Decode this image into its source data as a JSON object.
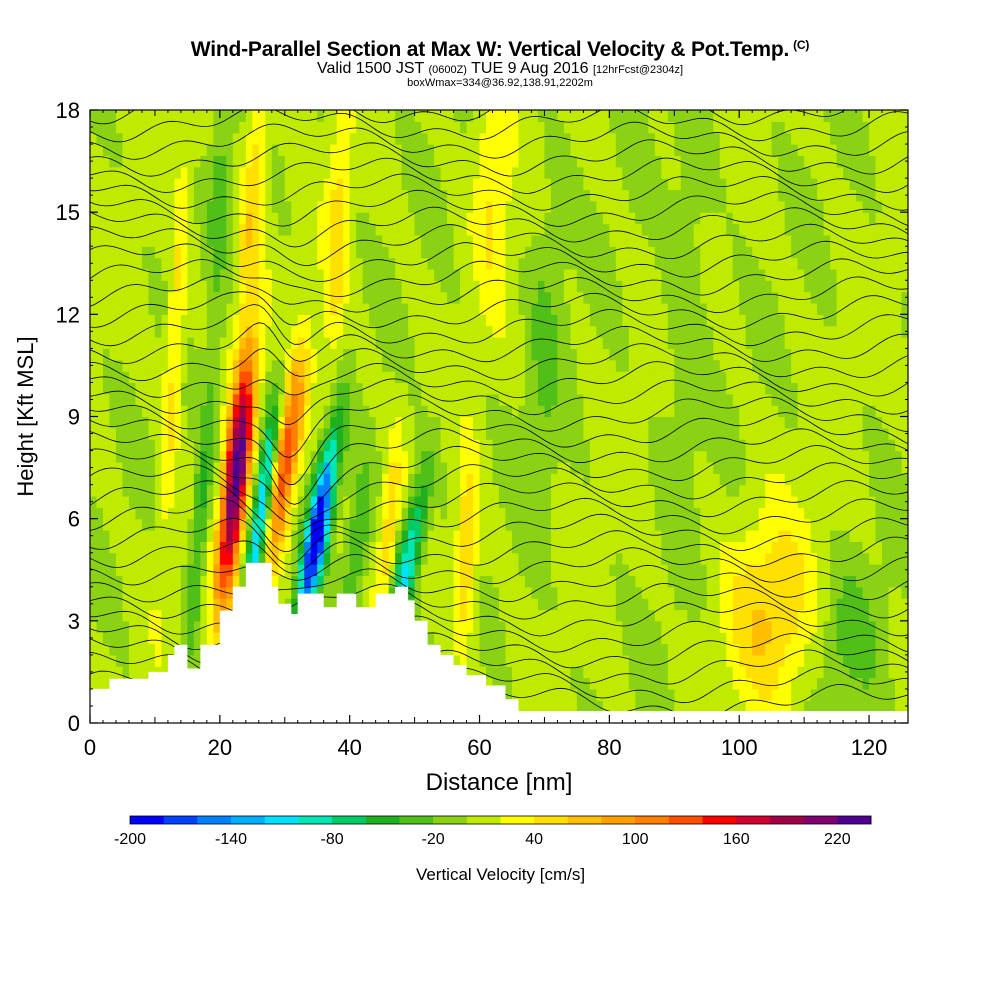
{
  "header": {
    "title": "Wind-Parallel Section at Max W: Vertical Velocity & Pot.Temp.",
    "copyright": "(C)",
    "valid_prefix": "Valid 1500 JST",
    "valid_utc": "(0600Z)",
    "valid_date": "TUE 9 Aug 2016",
    "forecast": "[12hrFcst@2304z]",
    "boxinfo": "boxWmax=334@36.92,138.91,2202m"
  },
  "chart_data": {
    "type": "heatmap",
    "xlabel": "Distance [nm]",
    "ylabel": "Height [Kft MSL]",
    "xlim": [
      0,
      126
    ],
    "ylim": [
      0,
      18
    ],
    "x_ticks": [
      0,
      20,
      40,
      60,
      80,
      100,
      120
    ],
    "y_ticks": [
      0,
      3,
      6,
      9,
      12,
      15,
      18
    ],
    "colorbar": {
      "label": "Vertical Velocity [cm/s]",
      "min": -200,
      "step": 20,
      "tick_labels": [
        "-200",
        "-140",
        "-80",
        "-20",
        "40",
        "100",
        "160",
        "220"
      ],
      "colors": [
        "#0000ff",
        "#0040ff",
        "#0080ff",
        "#00b0ff",
        "#00e0ff",
        "#00e6b4",
        "#00cc66",
        "#1fb01f",
        "#50c018",
        "#8cd214",
        "#beeb00",
        "#ffff00",
        "#ffe000",
        "#ffbf00",
        "#ff9f00",
        "#ff7f00",
        "#ff5000",
        "#ff0000",
        "#d00030",
        "#a00048",
        "#800070",
        "#500090"
      ]
    },
    "terrain_kft": [
      [
        0,
        1.0
      ],
      [
        3,
        1.0
      ],
      [
        3,
        1.3
      ],
      [
        9,
        1.3
      ],
      [
        9,
        1.5
      ],
      [
        12,
        1.5
      ],
      [
        12,
        2.0
      ],
      [
        13,
        2.0
      ],
      [
        13,
        2.3
      ],
      [
        15,
        2.3
      ],
      [
        15,
        1.6
      ],
      [
        17,
        1.6
      ],
      [
        17,
        2.3
      ],
      [
        20,
        2.3
      ],
      [
        20,
        3.3
      ],
      [
        22,
        3.3
      ],
      [
        22,
        4.0
      ],
      [
        24,
        4.0
      ],
      [
        24,
        4.7
      ],
      [
        28,
        4.7
      ],
      [
        28,
        4.0
      ],
      [
        29,
        4.0
      ],
      [
        29,
        3.5
      ],
      [
        31,
        3.5
      ],
      [
        31,
        3.2
      ],
      [
        32,
        3.2
      ],
      [
        32,
        3.8
      ],
      [
        36,
        3.8
      ],
      [
        36,
        3.4
      ],
      [
        38,
        3.4
      ],
      [
        38,
        3.8
      ],
      [
        41,
        3.8
      ],
      [
        41,
        3.4
      ],
      [
        44,
        3.4
      ],
      [
        44,
        3.8
      ],
      [
        47,
        3.8
      ],
      [
        47,
        4.0
      ],
      [
        49,
        4.0
      ],
      [
        49,
        3.6
      ],
      [
        50,
        3.6
      ],
      [
        50,
        3.0
      ],
      [
        52,
        3.0
      ],
      [
        52,
        2.3
      ],
      [
        54,
        2.3
      ],
      [
        54,
        2.0
      ],
      [
        56,
        2.0
      ],
      [
        56,
        1.7
      ],
      [
        58,
        1.7
      ],
      [
        58,
        1.4
      ],
      [
        61,
        1.4
      ],
      [
        61,
        1.1
      ],
      [
        64,
        1.1
      ],
      [
        64,
        0.7
      ],
      [
        66,
        0.7
      ],
      [
        66,
        0.35
      ],
      [
        126,
        0.35
      ]
    ],
    "w_features": [
      {
        "x": 22.5,
        "y": 7.2,
        "sx": 1.3,
        "sy": 2.6,
        "tilt": 0.25,
        "w": 230
      },
      {
        "x": 30.0,
        "y": 7.6,
        "sx": 1.4,
        "sy": 2.2,
        "tilt": 0.35,
        "w": 140
      },
      {
        "x": 35.0,
        "y": 5.6,
        "sx": 1.2,
        "sy": 2.0,
        "tilt": 0.4,
        "w": -210
      },
      {
        "x": 26.5,
        "y": 6.3,
        "sx": 1.0,
        "sy": 2.2,
        "tilt": 0.3,
        "w": -150
      },
      {
        "x": 49.0,
        "y": 4.8,
        "sx": 1.3,
        "sy": 1.8,
        "tilt": 0.45,
        "w": -110
      },
      {
        "x": 17.0,
        "y": 6.0,
        "sx": 1.0,
        "sy": 3.0,
        "tilt": 0.2,
        "w": -55
      },
      {
        "x": 25.0,
        "y": 15.5,
        "sx": 1.2,
        "sy": 3.0,
        "tilt": 0.2,
        "w": 55
      },
      {
        "x": 58.0,
        "y": 5.0,
        "sx": 1.2,
        "sy": 1.8,
        "tilt": 0.1,
        "w": 70
      },
      {
        "x": 46.0,
        "y": 5.5,
        "sx": 1.0,
        "sy": 2.0,
        "tilt": 0.2,
        "w": 50
      },
      {
        "x": 41.0,
        "y": 5.0,
        "sx": 1.2,
        "sy": 1.8,
        "tilt": 0.3,
        "w": -50
      },
      {
        "x": 105.0,
        "y": 3.2,
        "sx": 5.0,
        "sy": 2.0,
        "tilt": 0.0,
        "w": 55
      },
      {
        "x": 117.0,
        "y": 2.5,
        "sx": 4.0,
        "sy": 1.5,
        "tilt": 0.0,
        "w": -30
      },
      {
        "x": 13.0,
        "y": 11.0,
        "sx": 1.0,
        "sy": 4.0,
        "tilt": 0.15,
        "w": 45
      },
      {
        "x": 38.0,
        "y": 14.0,
        "sx": 1.2,
        "sy": 3.0,
        "tilt": 0.1,
        "w": 45
      },
      {
        "x": 20.0,
        "y": 16.0,
        "sx": 1.0,
        "sy": 2.5,
        "tilt": 0.1,
        "w": -30
      },
      {
        "x": 70.0,
        "y": 11.0,
        "sx": 2.0,
        "sy": 4.0,
        "tilt": 0.1,
        "w": -25
      },
      {
        "x": 92.0,
        "y": 13.0,
        "sx": 2.5,
        "sy": 5.0,
        "tilt": 0.1,
        "w": -20
      },
      {
        "x": 62.0,
        "y": 16.0,
        "sx": 2.0,
        "sy": 2.5,
        "tilt": 0.0,
        "w": 40
      }
    ]
  }
}
